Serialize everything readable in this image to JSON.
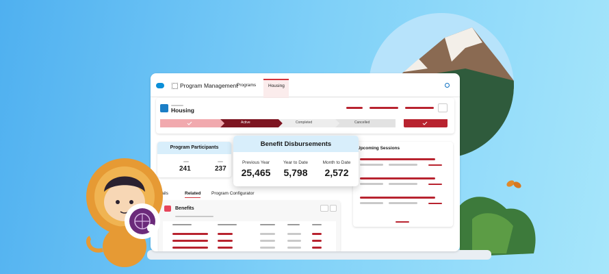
{
  "header": {
    "app_name": "Program Management",
    "tabs": [
      "Programs",
      "Housing"
    ]
  },
  "record": {
    "title": "Housing",
    "path": [
      "Active",
      "Completed",
      "Cancelled"
    ]
  },
  "participants": {
    "title": "Program Participants",
    "values": [
      "241",
      "237"
    ]
  },
  "disbursements": {
    "title": "Benefit Disbursements",
    "metrics": [
      {
        "label": "Previous Year",
        "value": "25,465"
      },
      {
        "label": "Year to Date",
        "value": "5,798"
      },
      {
        "label": "Month to Date",
        "value": "2,572"
      }
    ]
  },
  "sessions": {
    "title": "Upcoming Sessions"
  },
  "related_tabs": [
    "Details",
    "Related",
    "Program Configurator"
  ],
  "benefits": {
    "title": "Benefits"
  }
}
